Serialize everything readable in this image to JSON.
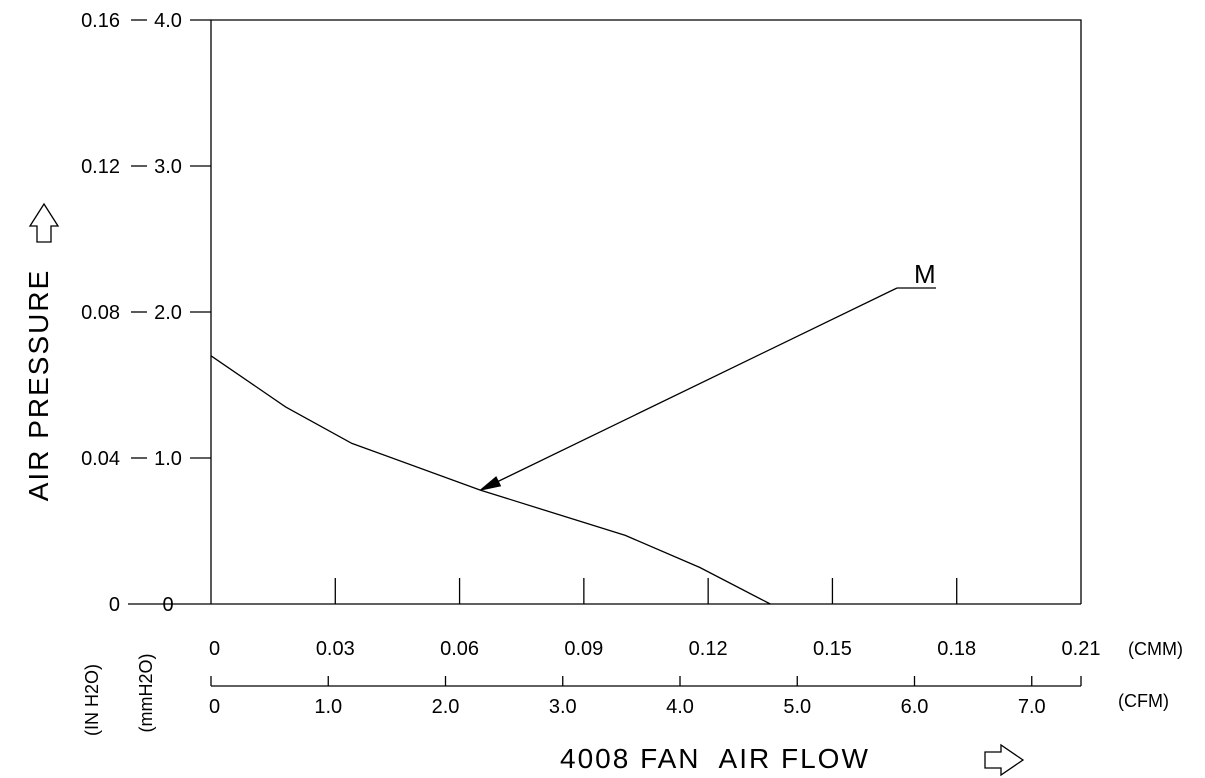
{
  "chart_data": {
    "type": "line",
    "xlabel": "4008 FAN  AIR FLOW",
    "ylabel": "AIR PRESSURE",
    "x_axis": {
      "unit": "(CMM)",
      "range": [
        0,
        0.21
      ],
      "ticks": [
        "0",
        "0.03",
        "0.06",
        "0.09",
        "0.12",
        "0.15",
        "0.18",
        "0.21"
      ]
    },
    "x_axis_secondary": {
      "unit": "(CFM)",
      "range": [
        0,
        7.42
      ],
      "ticks": [
        "0",
        "1.0",
        "2.0",
        "3.0",
        "4.0",
        "5.0",
        "6.0",
        "7.0"
      ]
    },
    "y_axis": {
      "unit": "(mmH2O)",
      "range": [
        0,
        4.0
      ],
      "ticks": [
        "0",
        "1.0",
        "2.0",
        "3.0",
        "4.0"
      ]
    },
    "y_axis_secondary": {
      "unit": "(IN H2O)",
      "range": [
        0,
        0.16
      ],
      "ticks": [
        "0",
        "0.04",
        "0.08",
        "0.12",
        "0.16"
      ]
    },
    "series": [
      {
        "name": "M",
        "x": [
          0,
          0.018,
          0.034,
          0.065,
          0.1,
          0.118,
          0.135
        ],
        "y": [
          1.7,
          1.35,
          1.1,
          0.78,
          0.47,
          0.25,
          0
        ]
      }
    ],
    "annotations": [
      {
        "text": "M",
        "x": 0.065,
        "y": 0.78
      }
    ],
    "grid": false
  }
}
